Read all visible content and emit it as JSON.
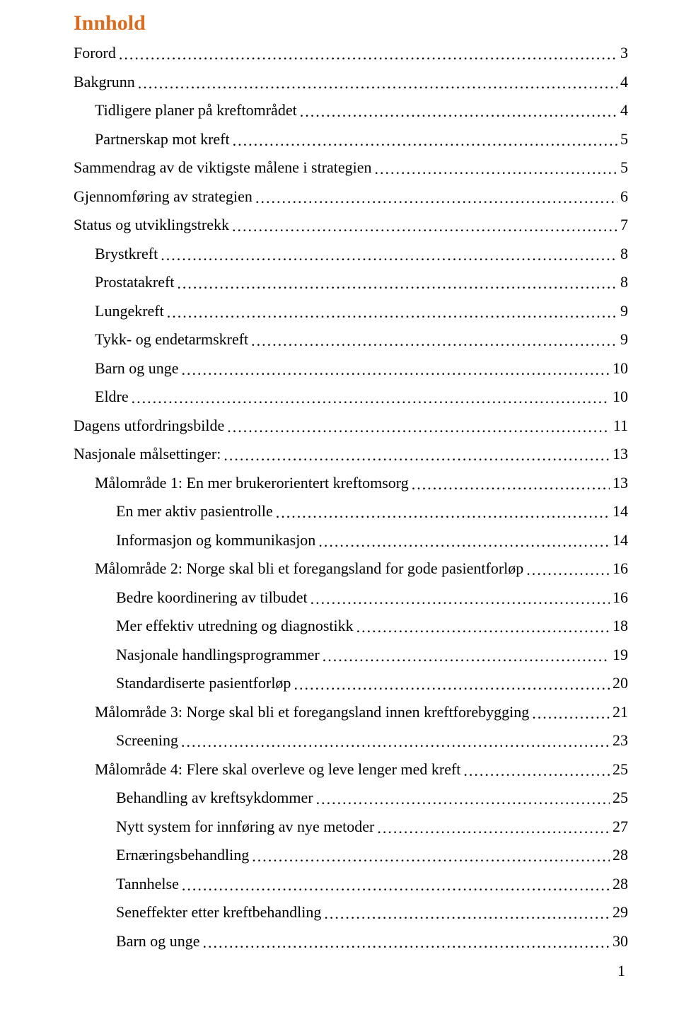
{
  "title": "Innhold",
  "title_color": "#d96c1f",
  "text_color": "#000000",
  "background_color": "#ffffff",
  "font_family": "Georgia, Times New Roman, serif",
  "title_fontsize": 30,
  "entry_fontsize": 22,
  "entries": [
    {
      "label": "Forord",
      "page": "3",
      "indent": 0
    },
    {
      "label": "Bakgrunn",
      "page": "4",
      "indent": 0
    },
    {
      "label": "Tidligere planer på kreftområdet",
      "page": "4",
      "indent": 1
    },
    {
      "label": "Partnerskap mot kreft",
      "page": "5",
      "indent": 1
    },
    {
      "label": "Sammendrag av de viktigste målene i strategien",
      "page": "5",
      "indent": 0
    },
    {
      "label": "Gjennomføring av strategien",
      "page": "6",
      "indent": 0
    },
    {
      "label": "Status og utviklingstrekk",
      "page": "7",
      "indent": 0
    },
    {
      "label": "Brystkreft",
      "page": "8",
      "indent": 1
    },
    {
      "label": "Prostatakreft",
      "page": "8",
      "indent": 1
    },
    {
      "label": "Lungekreft",
      "page": "9",
      "indent": 1
    },
    {
      "label": "Tykk- og endetarmskreft",
      "page": "9",
      "indent": 1
    },
    {
      "label": "Barn og unge",
      "page": "10",
      "indent": 1
    },
    {
      "label": "Eldre",
      "page": "10",
      "indent": 1
    },
    {
      "label": "Dagens utfordringsbilde",
      "page": "11",
      "indent": 0
    },
    {
      "label": "Nasjonale målsettinger:",
      "page": "13",
      "indent": 0
    },
    {
      "label": "Målområde 1: En mer brukerorientert kreftomsorg",
      "page": "13",
      "indent": 1
    },
    {
      "label": "En mer aktiv pasientrolle",
      "page": "14",
      "indent": 2
    },
    {
      "label": "Informasjon og kommunikasjon",
      "page": "14",
      "indent": 2
    },
    {
      "label": "Målområde 2: Norge skal bli et foregangsland for gode pasientforløp",
      "page": "16",
      "indent": 1
    },
    {
      "label": "Bedre koordinering av tilbudet",
      "page": "16",
      "indent": 2
    },
    {
      "label": "Mer effektiv utredning og diagnostikk",
      "page": "18",
      "indent": 2
    },
    {
      "label": "Nasjonale handlingsprogrammer",
      "page": "19",
      "indent": 2
    },
    {
      "label": "Standardiserte pasientforløp",
      "page": "20",
      "indent": 2
    },
    {
      "label": "Målområde 3: Norge skal bli et foregangsland innen kreftforebygging",
      "page": "21",
      "indent": 1
    },
    {
      "label": "Screening",
      "page": "23",
      "indent": 2
    },
    {
      "label": "Målområde 4: Flere skal overleve og leve lenger med kreft",
      "page": "25",
      "indent": 1
    },
    {
      "label": "Behandling av kreftsykdommer",
      "page": "25",
      "indent": 2
    },
    {
      "label": "Nytt system for innføring av nye metoder",
      "page": "27",
      "indent": 2
    },
    {
      "label": "Ernæringsbehandling",
      "page": "28",
      "indent": 2
    },
    {
      "label": "Tannhelse",
      "page": "28",
      "indent": 2
    },
    {
      "label": "Seneffekter etter kreftbehandling",
      "page": "29",
      "indent": 2
    },
    {
      "label": "Barn og unge",
      "page": "30",
      "indent": 2
    }
  ],
  "page_number": "1"
}
